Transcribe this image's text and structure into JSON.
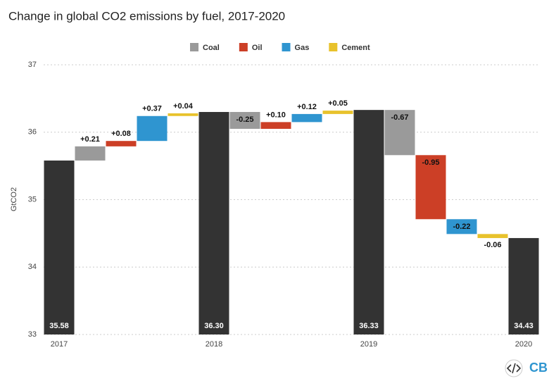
{
  "chart_data": {
    "type": "waterfall",
    "title": "Change in global CO2 emissions by fuel, 2017-2020",
    "y_label": "GtCO2",
    "categories": [
      "2017",
      null,
      null,
      null,
      null,
      "2018",
      null,
      null,
      null,
      null,
      "2019",
      null,
      null,
      null,
      null,
      "2020"
    ],
    "values": [
      35.58,
      0.21,
      0.08,
      0.37,
      0.04,
      36.3,
      -0.25,
      0.1,
      0.12,
      0.05,
      36.33,
      -0.67,
      -0.95,
      -0.22,
      -0.06,
      34.43
    ],
    "value_labels": [
      "35.58",
      "+0.21",
      "+0.08",
      "+0.37",
      "+0.04",
      "36.30",
      "-0.25",
      "+0.10",
      "+0.12",
      "+0.05",
      "36.33",
      "-0.67",
      "-0.95",
      "-0.22",
      "-0.06",
      "34.43"
    ],
    "series": [
      {
        "name": "Coal",
        "color": "#9a9a9a"
      },
      {
        "name": "Oil",
        "color": "#cc3f26"
      },
      {
        "name": "Gas",
        "color": "#2f95d0"
      },
      {
        "name": "Cement",
        "color": "#e8c22c"
      }
    ],
    "total_color": "#333333",
    "ylim": [
      33,
      37
    ],
    "yticks": [
      33,
      34,
      35,
      36,
      37
    ],
    "grid": true,
    "legend": "top"
  },
  "logo": "CB"
}
